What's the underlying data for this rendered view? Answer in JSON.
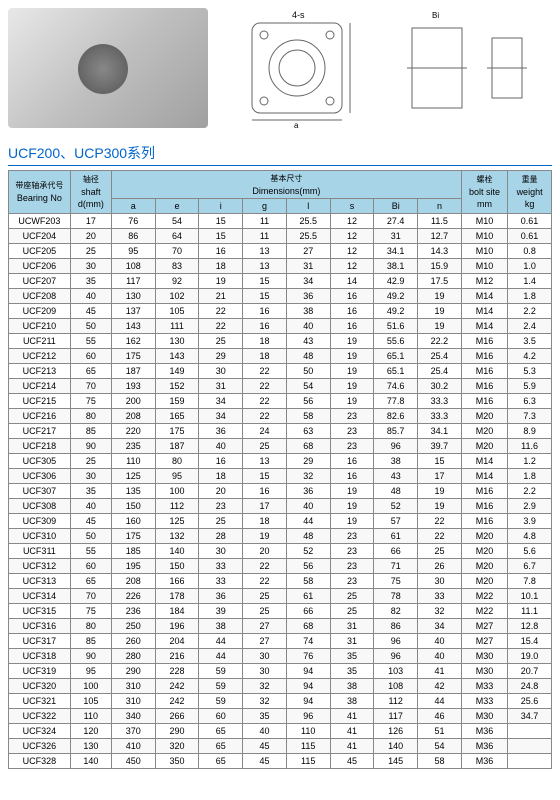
{
  "diagram_label_4s": "4-s",
  "series_title": "UCF200、UCP300系列",
  "headers": {
    "bearing_cn": "带座轴承代号",
    "bearing_en": "Bearing No",
    "shaft_cn": "轴径",
    "shaft_en": "shaft",
    "shaft_unit": "d(mm)",
    "dims_cn": "基本尺寸",
    "dims_en": "Dimensions(mm)",
    "bolt_cn": "螺栓",
    "bolt_en": "bolt site",
    "bolt_unit": "mm",
    "weight_cn": "重量",
    "weight_en": "weight",
    "weight_unit": "kg",
    "a": "a",
    "e": "e",
    "i": "i",
    "g": "g",
    "l": "l",
    "s": "s",
    "Bi": "Bi",
    "n": "n"
  },
  "rows": [
    [
      "UCWF203",
      "17",
      "76",
      "54",
      "15",
      "11",
      "25.5",
      "12",
      "27.4",
      "11.5",
      "M10",
      "0.61"
    ],
    [
      "UCF204",
      "20",
      "86",
      "64",
      "15",
      "11",
      "25.5",
      "12",
      "31",
      "12.7",
      "M10",
      "0.61"
    ],
    [
      "UCF205",
      "25",
      "95",
      "70",
      "16",
      "13",
      "27",
      "12",
      "34.1",
      "14.3",
      "M10",
      "0.8"
    ],
    [
      "UCF206",
      "30",
      "108",
      "83",
      "18",
      "13",
      "31",
      "12",
      "38.1",
      "15.9",
      "M10",
      "1.0"
    ],
    [
      "UCF207",
      "35",
      "117",
      "92",
      "19",
      "15",
      "34",
      "14",
      "42.9",
      "17.5",
      "M12",
      "1.4"
    ],
    [
      "UCF208",
      "40",
      "130",
      "102",
      "21",
      "15",
      "36",
      "16",
      "49.2",
      "19",
      "M14",
      "1.8"
    ],
    [
      "UCF209",
      "45",
      "137",
      "105",
      "22",
      "16",
      "38",
      "16",
      "49.2",
      "19",
      "M14",
      "2.2"
    ],
    [
      "UCF210",
      "50",
      "143",
      "111",
      "22",
      "16",
      "40",
      "16",
      "51.6",
      "19",
      "M14",
      "2.4"
    ],
    [
      "UCF211",
      "55",
      "162",
      "130",
      "25",
      "18",
      "43",
      "19",
      "55.6",
      "22.2",
      "M16",
      "3.5"
    ],
    [
      "UCF212",
      "60",
      "175",
      "143",
      "29",
      "18",
      "48",
      "19",
      "65.1",
      "25.4",
      "M16",
      "4.2"
    ],
    [
      "UCF213",
      "65",
      "187",
      "149",
      "30",
      "22",
      "50",
      "19",
      "65.1",
      "25.4",
      "M16",
      "5.3"
    ],
    [
      "UCF214",
      "70",
      "193",
      "152",
      "31",
      "22",
      "54",
      "19",
      "74.6",
      "30.2",
      "M16",
      "5.9"
    ],
    [
      "UCF215",
      "75",
      "200",
      "159",
      "34",
      "22",
      "56",
      "19",
      "77.8",
      "33.3",
      "M16",
      "6.3"
    ],
    [
      "UCF216",
      "80",
      "208",
      "165",
      "34",
      "22",
      "58",
      "23",
      "82.6",
      "33.3",
      "M20",
      "7.3"
    ],
    [
      "UCF217",
      "85",
      "220",
      "175",
      "36",
      "24",
      "63",
      "23",
      "85.7",
      "34.1",
      "M20",
      "8.9"
    ],
    [
      "UCF218",
      "90",
      "235",
      "187",
      "40",
      "25",
      "68",
      "23",
      "96",
      "39.7",
      "M20",
      "11.6"
    ],
    [
      "UCF305",
      "25",
      "110",
      "80",
      "16",
      "13",
      "29",
      "16",
      "38",
      "15",
      "M14",
      "1.2"
    ],
    [
      "UCF306",
      "30",
      "125",
      "95",
      "18",
      "15",
      "32",
      "16",
      "43",
      "17",
      "M14",
      "1.8"
    ],
    [
      "UCF307",
      "35",
      "135",
      "100",
      "20",
      "16",
      "36",
      "19",
      "48",
      "19",
      "M16",
      "2.2"
    ],
    [
      "UCF308",
      "40",
      "150",
      "112",
      "23",
      "17",
      "40",
      "19",
      "52",
      "19",
      "M16",
      "2.9"
    ],
    [
      "UCF309",
      "45",
      "160",
      "125",
      "25",
      "18",
      "44",
      "19",
      "57",
      "22",
      "M16",
      "3.9"
    ],
    [
      "UCF310",
      "50",
      "175",
      "132",
      "28",
      "19",
      "48",
      "23",
      "61",
      "22",
      "M20",
      "4.8"
    ],
    [
      "UCF311",
      "55",
      "185",
      "140",
      "30",
      "20",
      "52",
      "23",
      "66",
      "25",
      "M20",
      "5.6"
    ],
    [
      "UCF312",
      "60",
      "195",
      "150",
      "33",
      "22",
      "56",
      "23",
      "71",
      "26",
      "M20",
      "6.7"
    ],
    [
      "UCF313",
      "65",
      "208",
      "166",
      "33",
      "22",
      "58",
      "23",
      "75",
      "30",
      "M20",
      "7.8"
    ],
    [
      "UCF314",
      "70",
      "226",
      "178",
      "36",
      "25",
      "61",
      "25",
      "78",
      "33",
      "M22",
      "10.1"
    ],
    [
      "UCF315",
      "75",
      "236",
      "184",
      "39",
      "25",
      "66",
      "25",
      "82",
      "32",
      "M22",
      "11.1"
    ],
    [
      "UCF316",
      "80",
      "250",
      "196",
      "38",
      "27",
      "68",
      "31",
      "86",
      "34",
      "M27",
      "12.8"
    ],
    [
      "UCF317",
      "85",
      "260",
      "204",
      "44",
      "27",
      "74",
      "31",
      "96",
      "40",
      "M27",
      "15.4"
    ],
    [
      "UCF318",
      "90",
      "280",
      "216",
      "44",
      "30",
      "76",
      "35",
      "96",
      "40",
      "M30",
      "19.0"
    ],
    [
      "UCF319",
      "95",
      "290",
      "228",
      "59",
      "30",
      "94",
      "35",
      "103",
      "41",
      "M30",
      "20.7"
    ],
    [
      "UCF320",
      "100",
      "310",
      "242",
      "59",
      "32",
      "94",
      "38",
      "108",
      "42",
      "M33",
      "24.8"
    ],
    [
      "UCF321",
      "105",
      "310",
      "242",
      "59",
      "32",
      "94",
      "38",
      "112",
      "44",
      "M33",
      "25.6"
    ],
    [
      "UCF322",
      "110",
      "340",
      "266",
      "60",
      "35",
      "96",
      "41",
      "117",
      "46",
      "M30",
      "34.7"
    ],
    [
      "UCF324",
      "120",
      "370",
      "290",
      "65",
      "40",
      "110",
      "41",
      "126",
      "51",
      "M36",
      ""
    ],
    [
      "UCF326",
      "130",
      "410",
      "320",
      "65",
      "45",
      "115",
      "41",
      "140",
      "54",
      "M36",
      ""
    ],
    [
      "UCF328",
      "140",
      "450",
      "350",
      "65",
      "45",
      "115",
      "45",
      "145",
      "58",
      "M36",
      ""
    ]
  ]
}
